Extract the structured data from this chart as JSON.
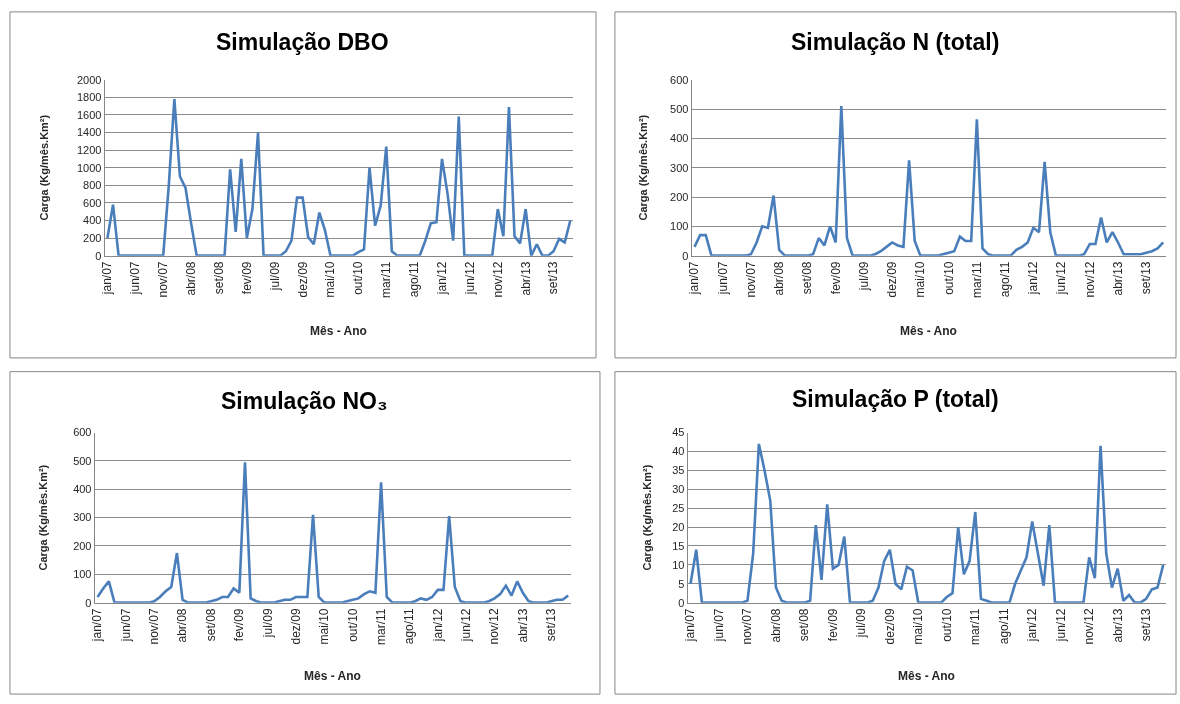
{
  "chart_data": [
    {
      "type": "line",
      "title": "Simulação DBO",
      "xlabel": "Mês - Ano",
      "ylabel": "Carga (Kg/mês.Km²)",
      "categories": [
        "jan/07",
        null,
        null,
        null,
        null,
        "jun/07",
        null,
        null,
        null,
        null,
        "nov/07",
        null,
        null,
        null,
        null,
        "abr/08",
        null,
        null,
        null,
        null,
        "set/08",
        null,
        null,
        null,
        null,
        "fev/09",
        null,
        null,
        null,
        null,
        "jul/09",
        null,
        null,
        null,
        null,
        "dez/09",
        null,
        null,
        null,
        null,
        "mai/10",
        null,
        null,
        null,
        null,
        "out/10",
        null,
        null,
        null,
        null,
        "mar/11",
        null,
        null,
        null,
        null,
        "ago/11",
        null,
        null,
        null,
        null,
        "jan/12",
        null,
        null,
        null,
        null,
        "jun/12",
        null,
        null,
        null,
        null,
        "nov/12",
        null,
        null,
        null,
        null,
        "abr/13",
        null,
        null,
        null,
        null,
        "set/13",
        null,
        null,
        null
      ],
      "values": [
        200,
        580,
        0,
        0,
        0,
        0,
        0,
        0,
        0,
        0,
        0,
        800,
        1780,
        900,
        770,
        370,
        0,
        0,
        0,
        0,
        0,
        0,
        980,
        270,
        1100,
        200,
        530,
        1400,
        0,
        0,
        0,
        0,
        50,
        170,
        660,
        660,
        210,
        130,
        490,
        290,
        0,
        0,
        0,
        0,
        0,
        40,
        70,
        1000,
        340,
        570,
        1240,
        50,
        0,
        0,
        0,
        0,
        0,
        170,
        370,
        380,
        1100,
        700,
        170,
        1580,
        0,
        0,
        0,
        0,
        0,
        0,
        530,
        220,
        1690,
        220,
        140,
        530,
        0,
        130,
        0,
        0,
        50,
        190,
        150,
        400
      ],
      "color": "#4a7ebb",
      "ylim": [
        0,
        2000
      ],
      "yticks": [
        0,
        200,
        400,
        600,
        800,
        1000,
        1200,
        1400,
        1600,
        1800,
        2000
      ],
      "grid": "y"
    },
    {
      "type": "line",
      "title": "Simulação N (total)",
      "xlabel": "Mês - Ano",
      "ylabel": "Carga (Kg/mês.Km²)",
      "categories": [
        "jan/07",
        null,
        null,
        null,
        null,
        "jun/07",
        null,
        null,
        null,
        null,
        "nov/07",
        null,
        null,
        null,
        null,
        "abr/08",
        null,
        null,
        null,
        null,
        "set/08",
        null,
        null,
        null,
        null,
        "fev/09",
        null,
        null,
        null,
        null,
        "jul/09",
        null,
        null,
        null,
        null,
        "dez/09",
        null,
        null,
        null,
        null,
        "mai/10",
        null,
        null,
        null,
        null,
        "out/10",
        null,
        null,
        null,
        null,
        "mar/11",
        null,
        null,
        null,
        null,
        "ago/11",
        null,
        null,
        null,
        null,
        "jan/12",
        null,
        null,
        null,
        null,
        "jun/12",
        null,
        null,
        null,
        null,
        "nov/12",
        null,
        null,
        null,
        null,
        "abr/13",
        null,
        null,
        null,
        null,
        "set/13",
        null,
        null,
        null
      ],
      "values": [
        30,
        70,
        70,
        0,
        0,
        0,
        0,
        0,
        0,
        0,
        5,
        45,
        100,
        95,
        205,
        20,
        0,
        0,
        0,
        0,
        0,
        5,
        60,
        35,
        100,
        45,
        510,
        60,
        0,
        0,
        0,
        0,
        5,
        15,
        30,
        45,
        35,
        30,
        325,
        50,
        0,
        0,
        0,
        0,
        5,
        10,
        15,
        65,
        50,
        50,
        465,
        25,
        5,
        0,
        0,
        0,
        0,
        20,
        30,
        45,
        95,
        80,
        320,
        80,
        0,
        0,
        0,
        0,
        0,
        5,
        40,
        40,
        130,
        45,
        80,
        45,
        5,
        5,
        5,
        5,
        10,
        15,
        25,
        45
      ],
      "color": "#4a7ebb",
      "ylim": [
        0,
        600
      ],
      "yticks": [
        0,
        100,
        200,
        300,
        400,
        500,
        600
      ],
      "grid": "y"
    },
    {
      "type": "line",
      "title": "Simulação NO₃",
      "xlabel": "Mês - Ano",
      "ylabel": "Carga (Kg/mês.Km²)",
      "categories": [
        "jan/07",
        null,
        null,
        null,
        null,
        "jun/07",
        null,
        null,
        null,
        null,
        "nov/07",
        null,
        null,
        null,
        null,
        "abr/08",
        null,
        null,
        null,
        null,
        "set/08",
        null,
        null,
        null,
        null,
        "fev/09",
        null,
        null,
        null,
        null,
        "jul/09",
        null,
        null,
        null,
        null,
        "dez/09",
        null,
        null,
        null,
        null,
        "mai/10",
        null,
        null,
        null,
        null,
        "out/10",
        null,
        null,
        null,
        null,
        "mar/11",
        null,
        null,
        null,
        null,
        "ago/11",
        null,
        null,
        null,
        null,
        "jan/12",
        null,
        null,
        null,
        null,
        "jun/12",
        null,
        null,
        null,
        null,
        "nov/12",
        null,
        null,
        null,
        null,
        "abr/13",
        null,
        null,
        null,
        null,
        "set/13",
        null,
        null,
        null
      ],
      "values": [
        20,
        50,
        75,
        0,
        0,
        0,
        0,
        0,
        0,
        0,
        5,
        20,
        40,
        55,
        175,
        10,
        0,
        0,
        0,
        0,
        5,
        10,
        20,
        20,
        50,
        35,
        495,
        15,
        5,
        0,
        0,
        0,
        5,
        10,
        10,
        20,
        20,
        20,
        310,
        20,
        0,
        0,
        0,
        0,
        5,
        10,
        15,
        30,
        40,
        35,
        425,
        20,
        0,
        0,
        0,
        0,
        5,
        15,
        10,
        20,
        45,
        45,
        305,
        55,
        5,
        0,
        0,
        0,
        0,
        5,
        15,
        30,
        60,
        25,
        75,
        35,
        5,
        0,
        0,
        0,
        5,
        10,
        10,
        25
      ],
      "color": "#4a7ebb",
      "ylim": [
        0,
        600
      ],
      "yticks": [
        0,
        100,
        200,
        300,
        400,
        500,
        600
      ],
      "grid": "y"
    },
    {
      "type": "line",
      "title": "Simulação P (total)",
      "xlabel": "Mês - Ano",
      "ylabel": "Carga (Kg/mês.Km²)",
      "categories": [
        "jan/07",
        null,
        null,
        null,
        null,
        "jun/07",
        null,
        null,
        null,
        null,
        "nov/07",
        null,
        null,
        null,
        null,
        "abr/08",
        null,
        null,
        null,
        null,
        "set/08",
        null,
        null,
        null,
        null,
        "fev/09",
        null,
        null,
        null,
        null,
        "jul/09",
        null,
        null,
        null,
        null,
        "dez/09",
        null,
        null,
        null,
        null,
        "mai/10",
        null,
        null,
        null,
        null,
        "out/10",
        null,
        null,
        null,
        null,
        "mar/11",
        null,
        null,
        null,
        null,
        "ago/11",
        null,
        null,
        null,
        null,
        "jan/12",
        null,
        null,
        null,
        null,
        "jun/12",
        null,
        null,
        null,
        null,
        "nov/12",
        null,
        null,
        null,
        null,
        "abr/13",
        null,
        null,
        null,
        null,
        "set/13",
        null,
        null,
        null
      ],
      "values": [
        5,
        14,
        0,
        0,
        0,
        0,
        0,
        0,
        0,
        0,
        0.5,
        13,
        42,
        35,
        27,
        4,
        0.5,
        0,
        0,
        0,
        0,
        0.5,
        20.5,
        6,
        26,
        9,
        10,
        17.5,
        0,
        0,
        0,
        0,
        0.5,
        4,
        11,
        14,
        5,
        3.5,
        9.5,
        8.5,
        0,
        0,
        0,
        0,
        0,
        1.5,
        2.5,
        20,
        7.5,
        11,
        24,
        1,
        0.5,
        0,
        0,
        0,
        0,
        5,
        8.5,
        12,
        21.5,
        13,
        4.5,
        20.5,
        0,
        0,
        0,
        0,
        0,
        0,
        12,
        6.5,
        41.5,
        13,
        4,
        9,
        0.5,
        2,
        0,
        0,
        1,
        3.5,
        4,
        10
      ],
      "color": "#4a7ebb",
      "ylim": [
        0,
        45
      ],
      "yticks": [
        0,
        5,
        10,
        15,
        20,
        25,
        30,
        35,
        40,
        45
      ],
      "grid": "y"
    }
  ]
}
